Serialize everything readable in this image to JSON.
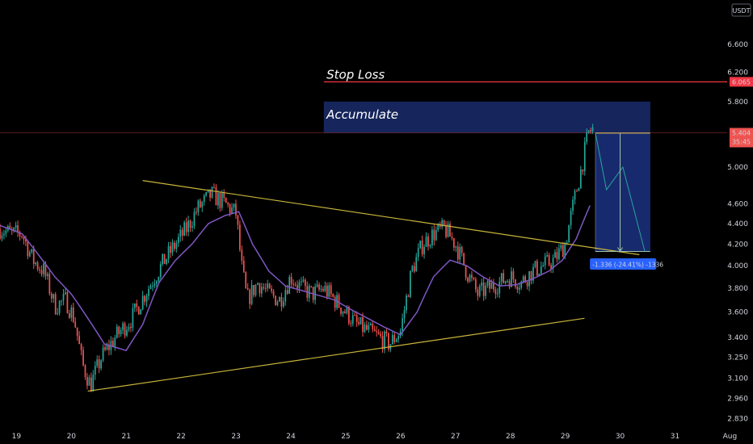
{
  "currency_badge": "USDT",
  "colors": {
    "background": "#000000",
    "up": "#26a69a",
    "down": "#ef5350",
    "ma_line": "#7e57c2",
    "trendline": "#c9b53a",
    "stop_loss": "#f23645",
    "accumulate_zone": "#1a2c6b",
    "short_zone": "#1b2f7a",
    "measure_badge": "#2962ff",
    "projection": "#26a69a"
  },
  "annotations": {
    "stop_loss": "Stop Loss",
    "accumulate": "Accumulate",
    "measure": "-1.336 (-24.41%) -1336"
  },
  "price_labels": {
    "stop_loss": "6.065",
    "current": "5.404",
    "countdown": "35:45"
  },
  "chart_data": {
    "type": "candlestick",
    "y_scale": "log",
    "ylim": [
      2.78,
      7.3
    ],
    "x_ticks": [
      "19",
      "20",
      "21",
      "22",
      "23",
      "24",
      "25",
      "26",
      "27",
      "28",
      "29",
      "30",
      "31",
      "Aug"
    ],
    "y_ticks": [
      "6.600",
      "6.200",
      "5.800",
      "5.000",
      "4.600",
      "4.400",
      "4.200",
      "4.000",
      "3.800",
      "3.600",
      "3.400",
      "3.250",
      "3.100",
      "2.960",
      "2.830"
    ],
    "y_tick_values": [
      6.6,
      6.2,
      5.8,
      5.0,
      4.6,
      4.4,
      4.2,
      4.0,
      3.8,
      3.6,
      3.4,
      3.25,
      3.1,
      2.96,
      2.83
    ],
    "x_domain": [
      18.7,
      31.95
    ],
    "x_tick_values": [
      19,
      20,
      21,
      22,
      23,
      24,
      25,
      26,
      27,
      28,
      29,
      30,
      31,
      32
    ],
    "close_anchors": [
      [
        18.7,
        4.35
      ],
      [
        18.9,
        4.3
      ],
      [
        19.1,
        4.3
      ],
      [
        19.3,
        4.05
      ],
      [
        19.5,
        3.95
      ],
      [
        19.7,
        3.65
      ],
      [
        19.9,
        3.7
      ],
      [
        20.05,
        3.55
      ],
      [
        20.2,
        3.2
      ],
      [
        20.35,
        3.05
      ],
      [
        20.55,
        3.25
      ],
      [
        20.8,
        3.4
      ],
      [
        21.1,
        3.55
      ],
      [
        21.4,
        3.8
      ],
      [
        21.7,
        4.05
      ],
      [
        21.9,
        4.2
      ],
      [
        22.1,
        4.35
      ],
      [
        22.3,
        4.55
      ],
      [
        22.55,
        4.7
      ],
      [
        22.8,
        4.6
      ],
      [
        23.0,
        4.5
      ],
      [
        23.1,
        4.0
      ],
      [
        23.2,
        3.7
      ],
      [
        23.4,
        3.85
      ],
      [
        23.6,
        3.75
      ],
      [
        23.8,
        3.7
      ],
      [
        24.0,
        3.9
      ],
      [
        24.2,
        3.8
      ],
      [
        24.4,
        3.75
      ],
      [
        24.6,
        3.8
      ],
      [
        24.8,
        3.7
      ],
      [
        25.0,
        3.6
      ],
      [
        25.2,
        3.5
      ],
      [
        25.4,
        3.45
      ],
      [
        25.6,
        3.4
      ],
      [
        25.8,
        3.35
      ],
      [
        26.0,
        3.45
      ],
      [
        26.2,
        3.95
      ],
      [
        26.4,
        4.2
      ],
      [
        26.6,
        4.3
      ],
      [
        26.8,
        4.35
      ],
      [
        27.0,
        4.2
      ],
      [
        27.2,
        3.95
      ],
      [
        27.4,
        3.75
      ],
      [
        27.6,
        3.8
      ],
      [
        27.8,
        3.85
      ],
      [
        28.0,
        3.9
      ],
      [
        28.2,
        3.85
      ],
      [
        28.4,
        3.95
      ],
      [
        28.6,
        4.0
      ],
      [
        28.8,
        4.05
      ],
      [
        29.0,
        4.2
      ],
      [
        29.15,
        4.6
      ],
      [
        29.3,
        5.0
      ],
      [
        29.42,
        5.4
      ],
      [
        29.5,
        5.45
      ]
    ],
    "ma_anchors": [
      [
        18.7,
        4.38
      ],
      [
        19.1,
        4.3
      ],
      [
        19.4,
        4.1
      ],
      [
        19.7,
        3.9
      ],
      [
        20.0,
        3.75
      ],
      [
        20.3,
        3.55
      ],
      [
        20.6,
        3.35
      ],
      [
        21.0,
        3.3
      ],
      [
        21.3,
        3.5
      ],
      [
        21.6,
        3.85
      ],
      [
        21.9,
        4.05
      ],
      [
        22.2,
        4.2
      ],
      [
        22.5,
        4.4
      ],
      [
        22.8,
        4.48
      ],
      [
        23.05,
        4.52
      ],
      [
        23.3,
        4.2
      ],
      [
        23.6,
        3.95
      ],
      [
        23.9,
        3.82
      ],
      [
        24.2,
        3.78
      ],
      [
        24.5,
        3.74
      ],
      [
        24.8,
        3.7
      ],
      [
        25.1,
        3.62
      ],
      [
        25.4,
        3.55
      ],
      [
        25.7,
        3.48
      ],
      [
        26.0,
        3.42
      ],
      [
        26.3,
        3.6
      ],
      [
        26.6,
        3.9
      ],
      [
        26.9,
        4.05
      ],
      [
        27.2,
        4.0
      ],
      [
        27.5,
        3.9
      ],
      [
        27.8,
        3.82
      ],
      [
        28.1,
        3.83
      ],
      [
        28.4,
        3.88
      ],
      [
        28.7,
        3.95
      ],
      [
        28.95,
        4.05
      ],
      [
        29.2,
        4.25
      ],
      [
        29.5,
        4.65
      ]
    ],
    "trendlines": [
      {
        "x1": 21.3,
        "y1": 4.85,
        "x2": 30.35,
        "y2": 4.1
      },
      {
        "x1": 20.3,
        "y1": 3.01,
        "x2": 29.35,
        "y2": 3.55
      }
    ],
    "stop_loss_price": 6.065,
    "current_price": 5.404,
    "accumulate_zone": {
      "x1": 24.6,
      "x2": 30.55,
      "y1": 5.404,
      "y2": 5.8
    },
    "short_position": {
      "x1": 29.55,
      "x2": 30.55,
      "entry": 5.4,
      "target": 4.13
    },
    "projection_path": [
      [
        29.55,
        5.4
      ],
      [
        29.75,
        4.75
      ],
      [
        30.05,
        5.0
      ],
      [
        30.45,
        4.13
      ]
    ],
    "measure_arrow_x": 30.0,
    "candle_count": 300
  }
}
